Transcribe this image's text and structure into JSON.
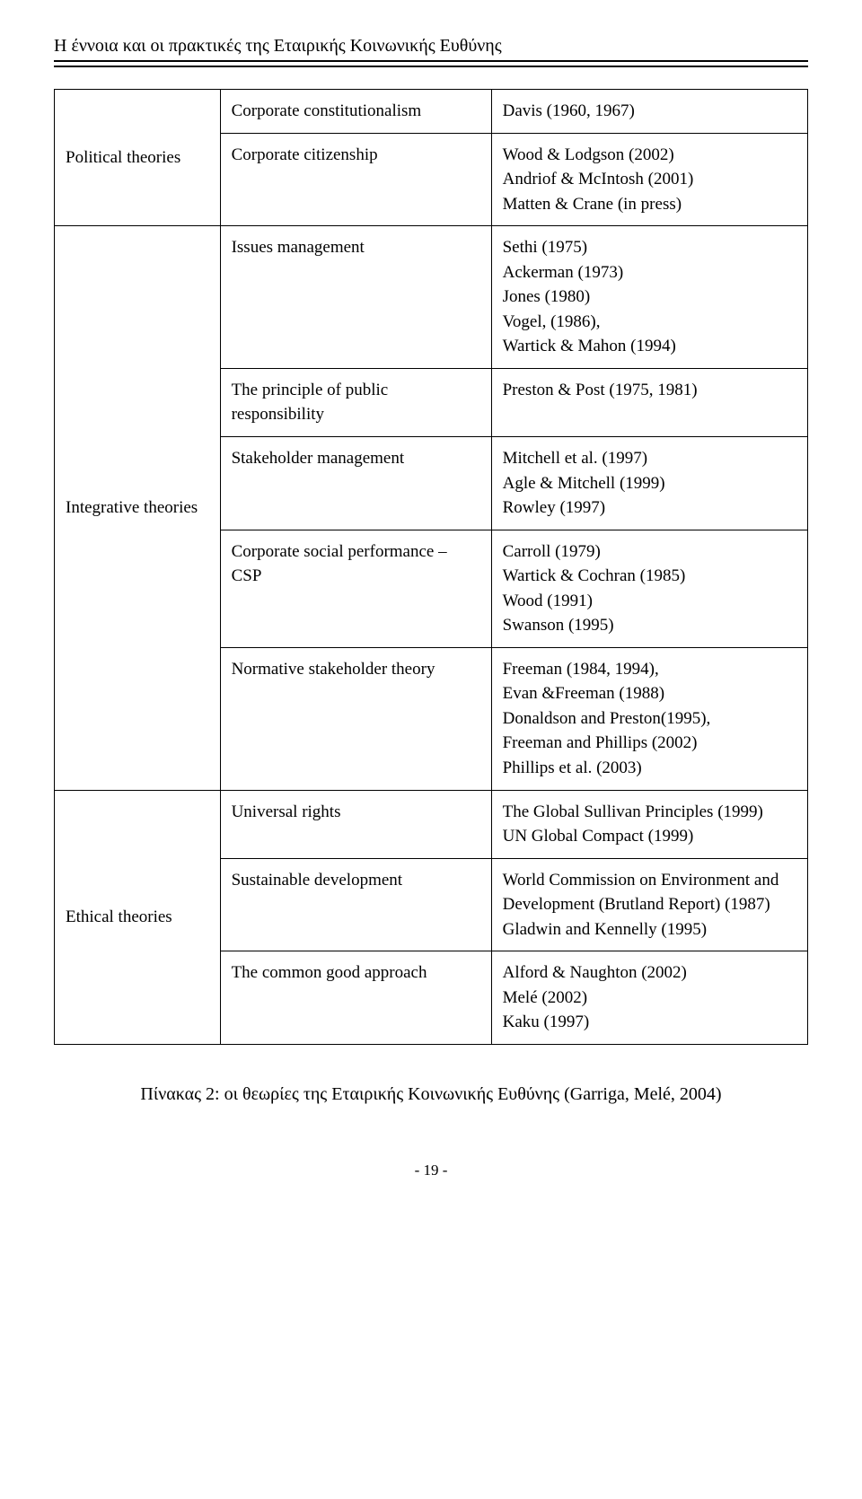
{
  "header": {
    "title": "Η έννοια και οι πρακτικές της Εταιρικής Κοινωνικής Ευθύνης"
  },
  "table": {
    "rows": [
      {
        "category": "Political theories",
        "approaches": [
          {
            "name": "Corporate constitutionalism",
            "refs": "Davis (1960, 1967)"
          },
          {
            "name": "Corporate citizenship",
            "refs": "Wood & Lodgson (2002)\nAndriof & McIntosh (2001)\nMatten & Crane (in press)"
          }
        ]
      },
      {
        "category": "Integrative theories",
        "approaches": [
          {
            "name": "Issues management",
            "refs": "Sethi (1975)\nAckerman (1973)\nJones (1980)\nVogel, (1986),\nWartick & Mahon (1994)"
          },
          {
            "name": "The principle of public responsibility",
            "refs": "Preston & Post (1975, 1981)"
          },
          {
            "name": "Stakeholder management",
            "refs": "Mitchell et al. (1997)\nAgle & Mitchell (1999)\nRowley (1997)"
          },
          {
            "name": "Corporate social performance – CSP",
            "refs": "Carroll (1979)\nWartick & Cochran (1985)\nWood (1991)\nSwanson (1995)"
          },
          {
            "name": "Normative stakeholder theory",
            "refs": "Freeman (1984, 1994),\nEvan &Freeman (1988)\nDonaldson and Preston(1995),\nFreeman and Phillips (2002)\nPhillips et al. (2003)"
          }
        ]
      },
      {
        "category": "Ethical theories",
        "approaches": [
          {
            "name": "Universal rights",
            "refs": "The Global Sullivan Principles (1999)\nUN Global Compact (1999)"
          },
          {
            "name": "Sustainable development",
            "refs": "World Commission on Environment and Development (Brutland Report) (1987)\nGladwin and Kennelly (1995)"
          },
          {
            "name": "The common good approach",
            "refs": "Alford & Naughton (2002)\nMelé (2002)\nKaku (1997)"
          }
        ]
      }
    ]
  },
  "caption": "Πίνακας 2: οι θεωρίες της Εταιρικής Κοινωνικής Ευθύνης (Garriga, Melé, 2004)",
  "pageNumber": "- 19 -"
}
